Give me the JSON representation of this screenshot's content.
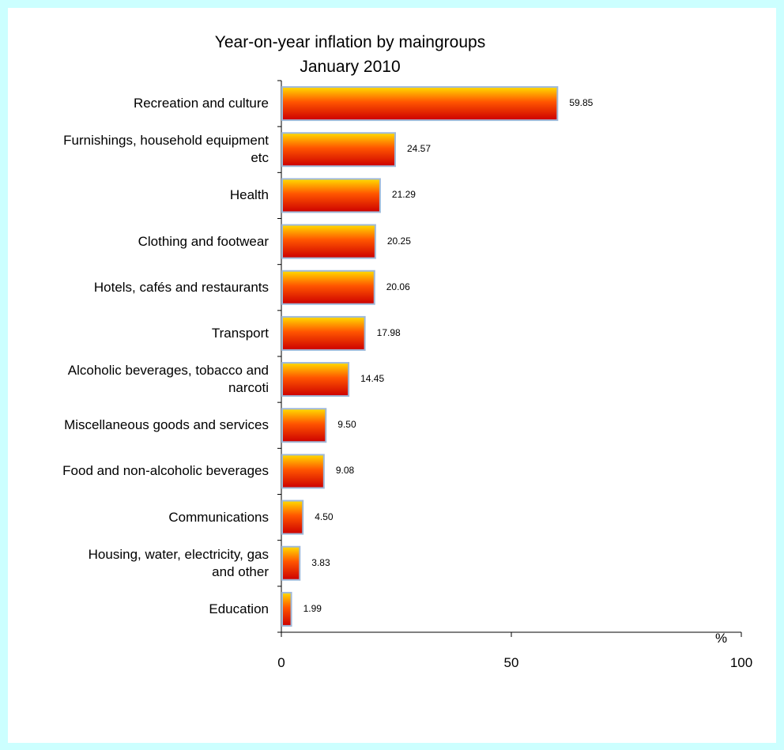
{
  "chart_data": {
    "type": "bar",
    "orientation": "horizontal",
    "title": "Year-on-year inflation by maingroups",
    "subtitle": "January 2010",
    "unit": "%",
    "categories": [
      [
        "Recreation and culture"
      ],
      [
        "Furnishings, household equipment",
        "etc"
      ],
      [
        "Health"
      ],
      [
        "Clothing and footwear"
      ],
      [
        "Hotels, cafés and restaurants"
      ],
      [
        "Transport"
      ],
      [
        "Alcoholic beverages, tobacco and",
        "narcoti"
      ],
      [
        "Miscellaneous goods and services"
      ],
      [
        "Food and non-alcoholic beverages"
      ],
      [
        "Communications"
      ],
      [
        "Housing, water, electricity, gas",
        "and other"
      ],
      [
        "Education"
      ]
    ],
    "values": [
      59.85,
      24.57,
      21.29,
      20.25,
      20.06,
      17.98,
      14.45,
      9.5,
      9.08,
      4.5,
      3.83,
      1.99
    ],
    "value_labels": [
      "59.85",
      "24.57",
      "21.29",
      "20.25",
      "20.06",
      "17.98",
      "14.45",
      "9.50",
      "9.08",
      "4.50",
      "3.83",
      "1.99"
    ],
    "xlim": [
      0,
      100
    ],
    "xticks": [
      "0",
      "50",
      "100"
    ],
    "grid": false,
    "legend": "none",
    "colors": {
      "bar_top": "#ffdd00",
      "bar_mid": "#ff5500",
      "bar_bottom": "#cc0000",
      "bar_edge": "#9fb9d9",
      "background": "#ccffff",
      "plot_area": "#ffffff"
    }
  }
}
